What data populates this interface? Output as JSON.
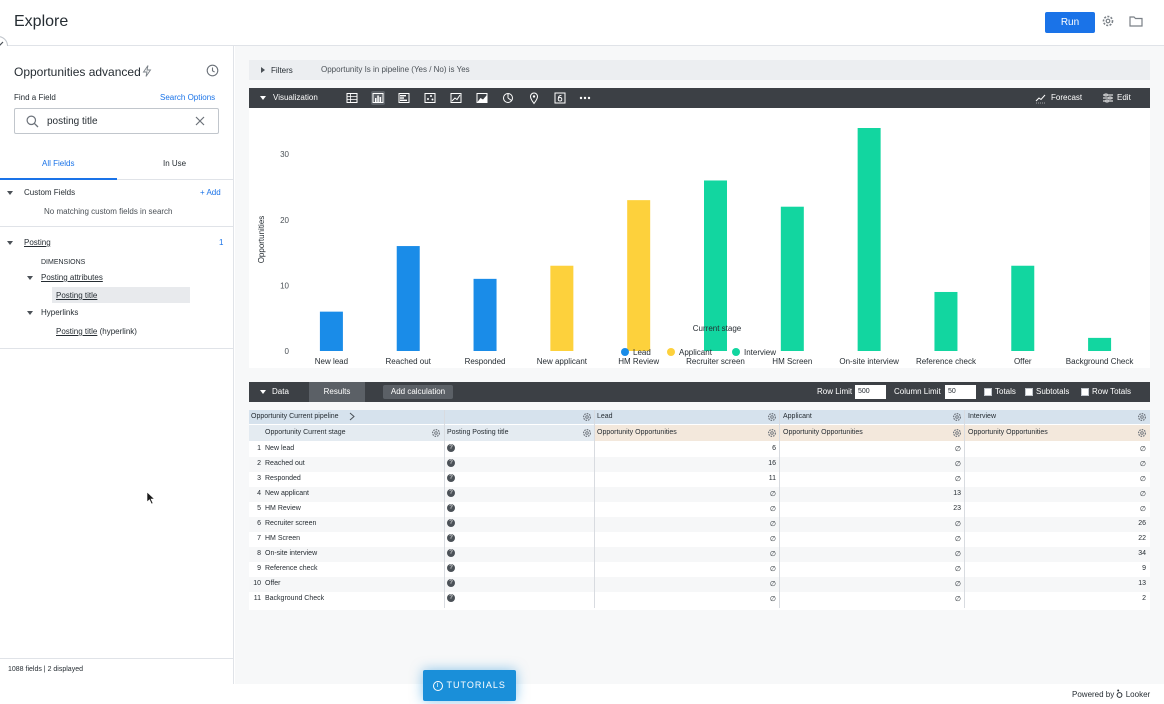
{
  "header": {
    "title": "Explore",
    "run_label": "Run"
  },
  "sidebar": {
    "explore_name": "Opportunities advanced",
    "find_field_label": "Find a Field",
    "search_options_label": "Search Options",
    "search_value": "posting title",
    "tabs": {
      "all_fields": "All Fields",
      "in_use": "In Use"
    },
    "custom_fields": {
      "label": "Custom Fields",
      "add_label": "+ Add",
      "empty_message": "No matching custom fields in search"
    },
    "posting": {
      "label": "Posting",
      "count": "1",
      "dimensions_label": "DIMENSIONS",
      "groups": [
        {
          "label": "Posting attributes",
          "field": "Posting title"
        },
        {
          "label": "Hyperlinks",
          "field": "Posting title",
          "field_suffix": "(hyperlink)"
        }
      ]
    },
    "fields_count": "1088 fields | 2 displayed"
  },
  "filters": {
    "label": "Filters",
    "description": "Opportunity Is in pipeline (Yes / No) is Yes"
  },
  "visualization": {
    "label": "Visualization",
    "icons": [
      "table-icon",
      "column-chart-icon",
      "bar-chart-icon",
      "scatter-icon",
      "line-chart-icon",
      "area-chart-icon",
      "pie-chart-icon",
      "map-pin-icon",
      "single-value-icon",
      "more-icon"
    ],
    "forecast_label": "Forecast",
    "edit_label": "Edit"
  },
  "chart_data": {
    "type": "bar",
    "xlabel": "Current stage",
    "ylabel": "Opportunities",
    "ylim": [
      0,
      34
    ],
    "yticks": [
      0,
      10,
      20,
      30
    ],
    "grid": false,
    "legend_position": "bottom",
    "categories": [
      "New lead",
      "Reached out",
      "Responded",
      "New applicant",
      "HM Review",
      "Recruiter screen",
      "HM Screen",
      "On-site interview",
      "Reference check",
      "Offer",
      "Background Check"
    ],
    "series": [
      {
        "name": "Lead",
        "color": "#1a8ce8",
        "values": [
          6,
          16,
          11,
          null,
          null,
          null,
          null,
          null,
          null,
          null,
          null
        ]
      },
      {
        "name": "Applicant",
        "color": "#fdd13c",
        "values": [
          null,
          null,
          null,
          13,
          23,
          null,
          null,
          null,
          null,
          null,
          null
        ]
      },
      {
        "name": "Interview",
        "color": "#12d6a0",
        "values": [
          null,
          null,
          null,
          null,
          null,
          26,
          22,
          34,
          9,
          13,
          2
        ]
      }
    ]
  },
  "data_panel": {
    "label": "Data",
    "results_label": "Results",
    "add_calc_label": "Add calculation",
    "row_limit_label": "Row Limit",
    "row_limit_value": "500",
    "column_limit_label": "Column Limit",
    "column_limit_value": "50",
    "totals_label": "Totals",
    "subtotals_label": "Subtotals",
    "row_totals_label": "Row Totals"
  },
  "table": {
    "pivot_header": "Opportunity Current pipeline",
    "pivot_values": [
      "Lead",
      "Applicant",
      "Interview"
    ],
    "dim1_header": "Opportunity Current stage",
    "dim2_header": "Posting Posting title",
    "measure_header": "Opportunity Opportunities",
    "null_symbol": "∅",
    "rows": [
      {
        "n": "1",
        "stage": "New lead",
        "lead": "6",
        "applicant": "∅",
        "interview": "∅"
      },
      {
        "n": "2",
        "stage": "Reached out",
        "lead": "16",
        "applicant": "∅",
        "interview": "∅"
      },
      {
        "n": "3",
        "stage": "Responded",
        "lead": "11",
        "applicant": "∅",
        "interview": "∅"
      },
      {
        "n": "4",
        "stage": "New applicant",
        "lead": "∅",
        "applicant": "13",
        "interview": "∅"
      },
      {
        "n": "5",
        "stage": "HM Review",
        "lead": "∅",
        "applicant": "23",
        "interview": "∅"
      },
      {
        "n": "6",
        "stage": "Recruiter screen",
        "lead": "∅",
        "applicant": "∅",
        "interview": "26"
      },
      {
        "n": "7",
        "stage": "HM Screen",
        "lead": "∅",
        "applicant": "∅",
        "interview": "22"
      },
      {
        "n": "8",
        "stage": "On-site interview",
        "lead": "∅",
        "applicant": "∅",
        "interview": "34"
      },
      {
        "n": "9",
        "stage": "Reference check",
        "lead": "∅",
        "applicant": "∅",
        "interview": "9"
      },
      {
        "n": "10",
        "stage": "Offer",
        "lead": "∅",
        "applicant": "∅",
        "interview": "13"
      },
      {
        "n": "11",
        "stage": "Background Check",
        "lead": "∅",
        "applicant": "∅",
        "interview": "2"
      }
    ]
  },
  "footer": {
    "tutorials_label": "TUTORIALS",
    "powered_by": "Powered by",
    "brand": "Looker"
  }
}
